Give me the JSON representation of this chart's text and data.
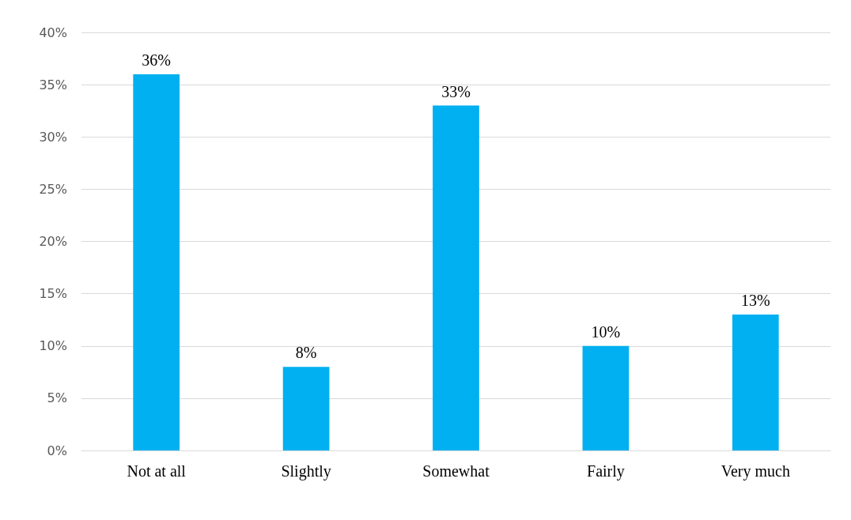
{
  "chart_data": {
    "type": "bar",
    "categories": [
      "Not at all",
      "Slightly",
      "Somewhat",
      "Fairly",
      "Very much"
    ],
    "values": [
      36,
      8,
      33,
      10,
      13
    ],
    "value_labels": [
      "36%",
      "8%",
      "33%",
      "10%",
      "13%"
    ],
    "color": "#00b0f0",
    "ylim": [
      0,
      40
    ],
    "yticks": [
      {
        "value": 0,
        "label": "0%"
      },
      {
        "value": 5,
        "label": "5%"
      },
      {
        "value": 10,
        "label": "10%"
      },
      {
        "value": 15,
        "label": "15%"
      },
      {
        "value": 20,
        "label": "20%"
      },
      {
        "value": 25,
        "label": "25%"
      },
      {
        "value": 30,
        "label": "30%"
      },
      {
        "value": 35,
        "label": "35%"
      },
      {
        "value": 40,
        "label": "40%"
      }
    ],
    "grid": "y"
  }
}
